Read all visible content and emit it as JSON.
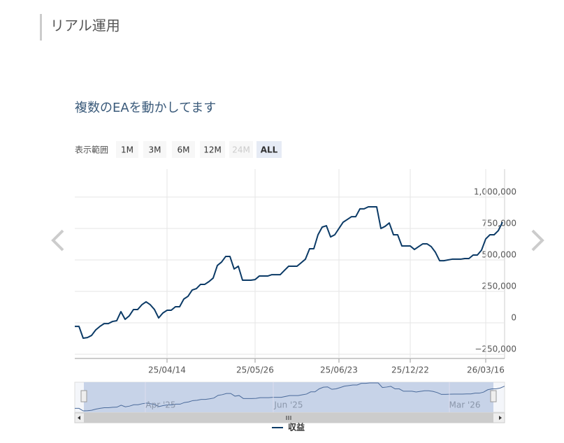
{
  "header": {
    "title": "リアル運用"
  },
  "range_selector": {
    "label": "表示範囲",
    "buttons": [
      "1M",
      "3M",
      "6M",
      "12M",
      "24M",
      "ALL"
    ],
    "disabled": "24M",
    "selected": "ALL"
  },
  "chart_data": {
    "type": "line",
    "title": "複数のEAを動かしてます",
    "categories": [
      null,
      null,
      null,
      null,
      null,
      null,
      null,
      null,
      null,
      null,
      null,
      null,
      null,
      null,
      null,
      null,
      null,
      null,
      null,
      null,
      null,
      null,
      "25/04/14",
      null,
      null,
      null,
      null,
      null,
      null,
      null,
      null,
      null,
      null,
      null,
      null,
      null,
      null,
      null,
      null,
      null,
      null,
      null,
      null,
      "25/05/26",
      null,
      null,
      null,
      null,
      null,
      null,
      null,
      null,
      null,
      null,
      null,
      null,
      null,
      null,
      null,
      null,
      null,
      null,
      null,
      "25/06/23",
      null,
      null,
      null,
      null,
      null,
      null,
      null,
      null,
      null,
      null,
      null,
      null,
      null,
      null,
      null,
      null,
      "25/12/22",
      null,
      null,
      null,
      null,
      null,
      null,
      null,
      null,
      null,
      null,
      null,
      null,
      null,
      null,
      null,
      null,
      null,
      "26/03/16",
      null,
      null,
      null,
      null
    ],
    "series": [
      {
        "name": "収益",
        "color": "#0b3a66",
        "values": [
          -28000,
          -28000,
          -122000,
          -117000,
          -100000,
          -56000,
          -28000,
          -6000,
          -6000,
          11000,
          17000,
          89000,
          28000,
          56000,
          106000,
          106000,
          144000,
          167000,
          144000,
          106000,
          39000,
          78000,
          100000,
          100000,
          128000,
          128000,
          189000,
          211000,
          261000,
          272000,
          306000,
          306000,
          328000,
          356000,
          456000,
          483000,
          528000,
          528000,
          428000,
          450000,
          339000,
          339000,
          339000,
          344000,
          372000,
          372000,
          372000,
          383000,
          383000,
          383000,
          417000,
          450000,
          450000,
          450000,
          478000,
          506000,
          589000,
          589000,
          700000,
          761000,
          772000,
          683000,
          700000,
          750000,
          800000,
          822000,
          844000,
          844000,
          906000,
          906000,
          922000,
          922000,
          922000,
          750000,
          767000,
          794000,
          700000,
          700000,
          611000,
          611000,
          611000,
          583000,
          606000,
          628000,
          628000,
          606000,
          561000,
          494000,
          494000,
          500000,
          506000,
          506000,
          506000,
          511000,
          511000,
          539000,
          539000,
          578000,
          667000,
          700000,
          700000,
          733000,
          800000
        ]
      }
    ],
    "ylim": [
      -283000,
      1222000
    ],
    "yticks": [
      {
        "value": -250000,
        "label": "−250,000"
      },
      0,
      {
        "value": 250000,
        "label": "250,000"
      },
      {
        "value": 500000,
        "label": "500,000"
      },
      {
        "value": 750000,
        "label": "750,000"
      },
      {
        "value": 1000000,
        "label": "1,000,000"
      }
    ],
    "grid": true,
    "navigator_labels": [
      "Apr '25",
      "Jun '25",
      "Mar '26"
    ]
  }
}
